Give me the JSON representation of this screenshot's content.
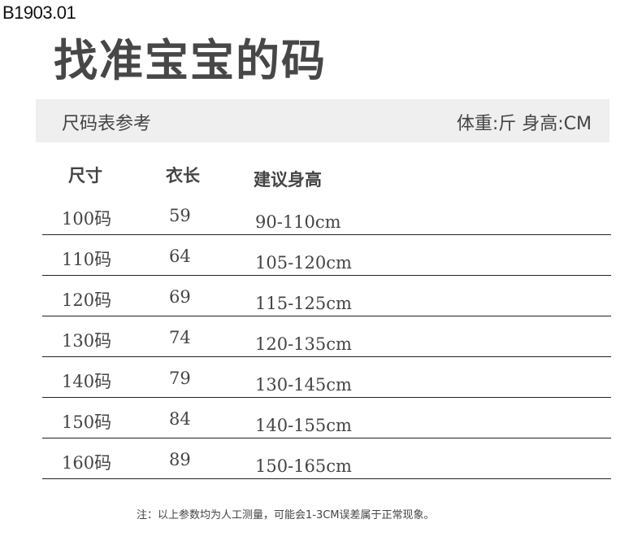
{
  "product_code": "B1903.01",
  "title": "找准宝宝的码",
  "band": {
    "left": "尺码表参考",
    "right": "体重:斤 身高:CM"
  },
  "headers": {
    "size": "尺寸",
    "length": "衣长",
    "height": "建议身高"
  },
  "rows": [
    {
      "size": "100码",
      "length": "59",
      "height": "90-110cm"
    },
    {
      "size": "110码",
      "length": "64",
      "height": "105-120cm"
    },
    {
      "size": "120码",
      "length": "69",
      "height": "115-125cm"
    },
    {
      "size": "130码",
      "length": "74",
      "height": "120-135cm"
    },
    {
      "size": "140码",
      "length": "79",
      "height": "130-145cm"
    },
    {
      "size": "150码",
      "length": "84",
      "height": "140-155cm"
    },
    {
      "size": "160码",
      "length": "89",
      "height": "150-165cm"
    }
  ],
  "note": "注：以上参数均为人工测量，可能会1-3CM误差属于正常现象。"
}
